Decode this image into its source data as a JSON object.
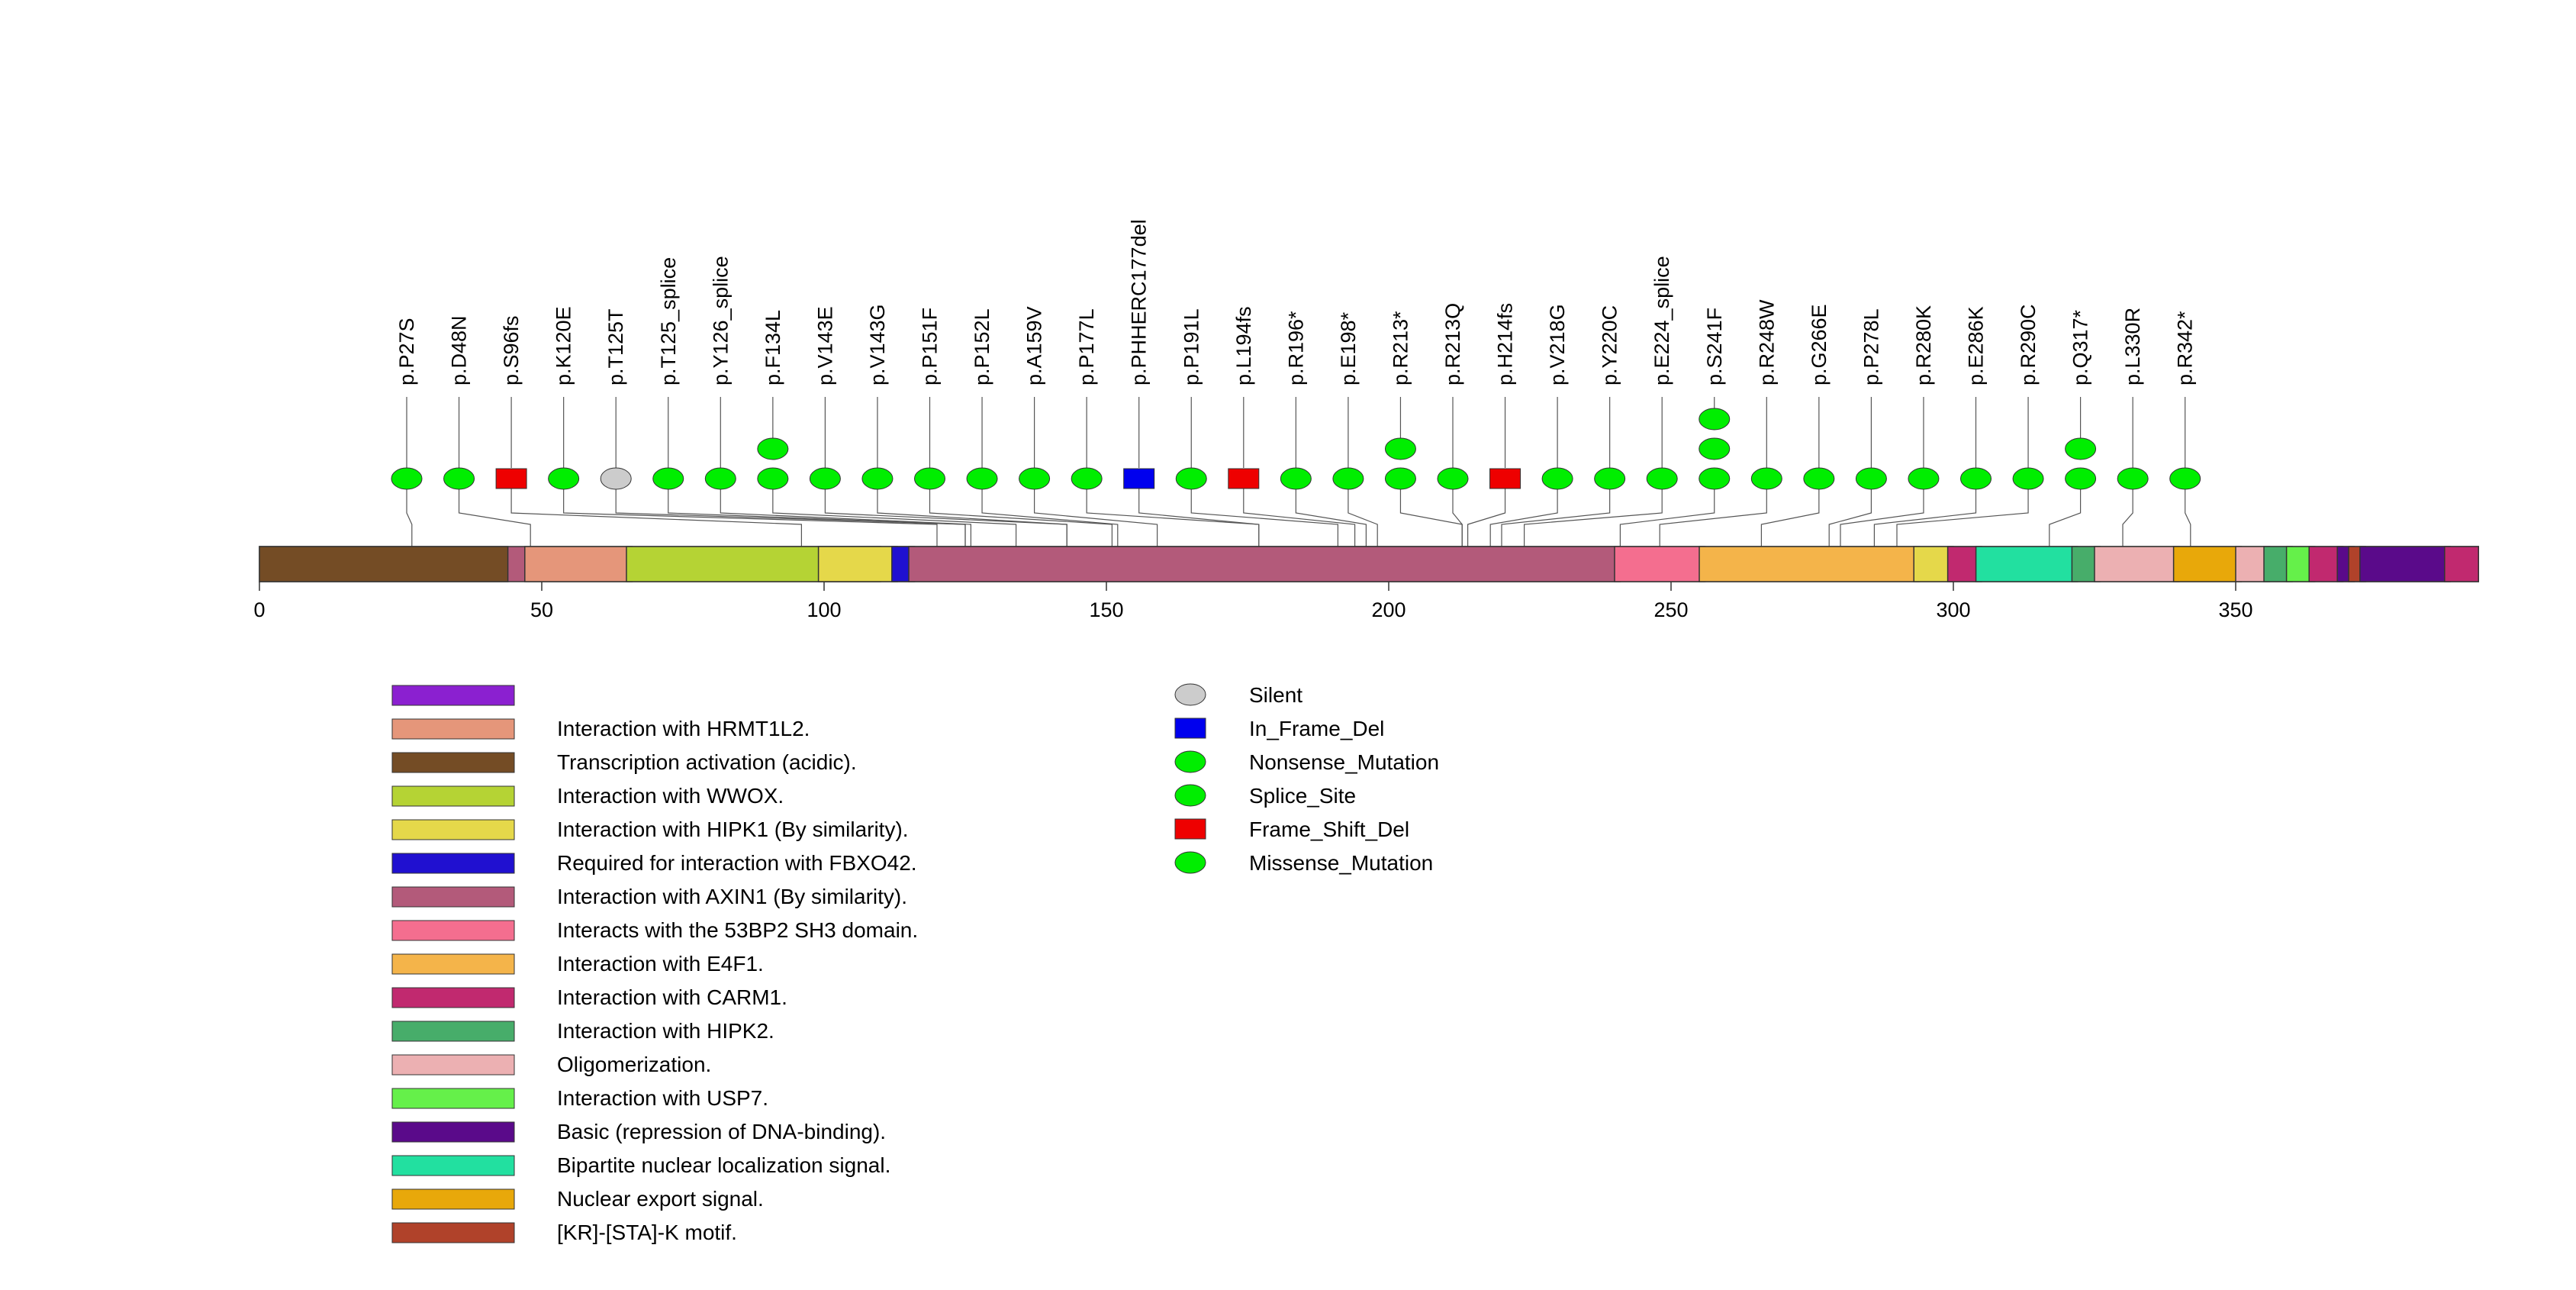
{
  "chart_data": {
    "type": "lollipop",
    "protein_length": 393,
    "x_ticks": [
      0,
      50,
      100,
      150,
      200,
      250,
      300,
      350
    ],
    "domains": [
      {
        "start": 1,
        "end": 44,
        "color": "#744c25",
        "label": "Transcription activation (acidic)."
      },
      {
        "start": 48,
        "end": 66,
        "color": "#e5967a",
        "label": "Interaction with HRMT1L2."
      },
      {
        "start": 66,
        "end": 110,
        "color": "#b5d334",
        "label": "Interaction with WWOX."
      },
      {
        "start": 100,
        "end": 113,
        "color": "#e5d84a",
        "label": "Interaction with HIPK1 (By similarity)."
      },
      {
        "start": 113,
        "end": 116,
        "color": "#2010d0",
        "label": "Required for interaction with FBXO42."
      },
      {
        "start": 116,
        "end": 241,
        "color": "#b35a7a",
        "label": "Interaction with AXIN1 (By similarity)."
      },
      {
        "start": 241,
        "end": 256,
        "color": "#f46e8f",
        "label": "Interacts with the 53BP2 SH3 domain."
      },
      {
        "start": 256,
        "end": 294,
        "color": "#f4b44a",
        "label": "Interaction with E4F1."
      },
      {
        "start": 294,
        "end": 300,
        "color": "#e5d84a",
        "label": "Interaction with HIPK1 (By similarity)."
      },
      {
        "start": 300,
        "end": 305,
        "color": "#c1296f",
        "label": "Interaction with CARM1."
      },
      {
        "start": 305,
        "end": 322,
        "color": "#22e0a0",
        "label": "Bipartite nuclear localization signal."
      },
      {
        "start": 322,
        "end": 326,
        "color": "#47ad6a",
        "label": "Interaction with HIPK2."
      },
      {
        "start": 326,
        "end": 340,
        "color": "#ecb0b2",
        "label": "Oligomerization."
      },
      {
        "start": 340,
        "end": 351,
        "color": "#e8a80a",
        "label": "Nuclear export signal."
      },
      {
        "start": 351,
        "end": 356,
        "color": "#ecb0b2",
        "label": "Oligomerization."
      },
      {
        "start": 356,
        "end": 360,
        "color": "#47ad6a",
        "label": "Interaction with HIPK2."
      },
      {
        "start": 360,
        "end": 364,
        "color": "#65f04a",
        "label": "Interaction with USP7."
      },
      {
        "start": 364,
        "end": 369,
        "color": "#c1296f",
        "label": "Interaction with CARM1."
      },
      {
        "start": 369,
        "end": 371,
        "color": "#5a0a8a",
        "label": "Basic (repression of DNA-binding)."
      },
      {
        "start": 371,
        "end": 373,
        "color": "#b0422a",
        "label": "[KR]-[STA]-K motif."
      },
      {
        "start": 373,
        "end": 388,
        "color": "#5a0a8a",
        "label": "Basic (repression of DNA-binding)."
      },
      {
        "start": 388,
        "end": 393,
        "color": "#c1296f",
        "label": "Interaction with CARM1."
      }
    ],
    "domain_boundaries": [
      27,
      44,
      48,
      66,
      96,
      100,
      113,
      116,
      121,
      125,
      134,
      143,
      151,
      152,
      159,
      177,
      191,
      194,
      196,
      198,
      213,
      214,
      218,
      220,
      224,
      241,
      248,
      256,
      266,
      278,
      280,
      286,
      290,
      294,
      300
    ],
    "mutations": [
      {
        "label": "p.P27S",
        "pos": 27,
        "class": "Missense_Mutation",
        "count": 1
      },
      {
        "label": "p.D48N",
        "pos": 48,
        "class": "Missense_Mutation",
        "count": 1
      },
      {
        "label": "p.S96fs",
        "pos": 96,
        "class": "Frame_Shift_Del",
        "count": 1
      },
      {
        "label": "p.K120E",
        "pos": 120,
        "class": "Missense_Mutation",
        "count": 1
      },
      {
        "label": "p.T125T",
        "pos": 125,
        "class": "Silent",
        "count": 1
      },
      {
        "label": "p.T125_splice",
        "pos": 125,
        "class": "Splice_Site",
        "count": 1
      },
      {
        "label": "p.Y126_splice",
        "pos": 126,
        "class": "Splice_Site",
        "count": 1
      },
      {
        "label": "p.F134L",
        "pos": 134,
        "class": "Missense_Mutation",
        "count": 2
      },
      {
        "label": "p.V143E",
        "pos": 143,
        "class": "Missense_Mutation",
        "count": 1
      },
      {
        "label": "p.V143G",
        "pos": 143,
        "class": "Missense_Mutation",
        "count": 1
      },
      {
        "label": "p.P151F",
        "pos": 151,
        "class": "Missense_Mutation",
        "count": 1
      },
      {
        "label": "p.P152L",
        "pos": 152,
        "class": "Missense_Mutation",
        "count": 1
      },
      {
        "label": "p.A159V",
        "pos": 159,
        "class": "Missense_Mutation",
        "count": 1
      },
      {
        "label": "p.P177L",
        "pos": 177,
        "class": "Missense_Mutation",
        "count": 1
      },
      {
        "label": "p.PHHERC177del",
        "pos": 177,
        "class": "In_Frame_Del",
        "count": 1
      },
      {
        "label": "p.P191L",
        "pos": 191,
        "class": "Missense_Mutation",
        "count": 1
      },
      {
        "label": "p.L194fs",
        "pos": 194,
        "class": "Frame_Shift_Del",
        "count": 1
      },
      {
        "label": "p.R196*",
        "pos": 196,
        "class": "Nonsense_Mutation",
        "count": 1
      },
      {
        "label": "p.E198*",
        "pos": 198,
        "class": "Nonsense_Mutation",
        "count": 1
      },
      {
        "label": "p.R213*",
        "pos": 213,
        "class": "Nonsense_Mutation",
        "count": 2
      },
      {
        "label": "p.R213Q",
        "pos": 213,
        "class": "Missense_Mutation",
        "count": 1
      },
      {
        "label": "p.H214fs",
        "pos": 214,
        "class": "Frame_Shift_Del",
        "count": 1
      },
      {
        "label": "p.V218G",
        "pos": 218,
        "class": "Missense_Mutation",
        "count": 1
      },
      {
        "label": "p.Y220C",
        "pos": 220,
        "class": "Missense_Mutation",
        "count": 1
      },
      {
        "label": "p.E224_splice",
        "pos": 224,
        "class": "Splice_Site",
        "count": 1
      },
      {
        "label": "p.S241F",
        "pos": 241,
        "class": "Missense_Mutation",
        "count": 3
      },
      {
        "label": "p.R248W",
        "pos": 248,
        "class": "Missense_Mutation",
        "count": 1
      },
      {
        "label": "p.G266E",
        "pos": 266,
        "class": "Missense_Mutation",
        "count": 1
      },
      {
        "label": "p.P278L",
        "pos": 278,
        "class": "Missense_Mutation",
        "count": 1
      },
      {
        "label": "p.R280K",
        "pos": 280,
        "class": "Missense_Mutation",
        "count": 1
      },
      {
        "label": "p.E286K",
        "pos": 286,
        "class": "Missense_Mutation",
        "count": 1
      },
      {
        "label": "p.R290C",
        "pos": 290,
        "class": "Missense_Mutation",
        "count": 1
      },
      {
        "label": "p.Q317*",
        "pos": 317,
        "class": "Nonsense_Mutation",
        "count": 2
      },
      {
        "label": "p.L330R",
        "pos": 330,
        "class": "Missense_Mutation",
        "count": 1
      },
      {
        "label": "p.R342*",
        "pos": 342,
        "class": "Nonsense_Mutation",
        "count": 1
      }
    ],
    "domain_legend": [
      {
        "label": "",
        "color": "#8b20d0"
      },
      {
        "label": "Interaction with HRMT1L2.",
        "color": "#e5967a"
      },
      {
        "label": "Transcription activation (acidic).",
        "color": "#744c25"
      },
      {
        "label": "Interaction with WWOX.",
        "color": "#b5d334"
      },
      {
        "label": "Interaction with HIPK1 (By similarity).",
        "color": "#e5d84a"
      },
      {
        "label": "Required for interaction with FBXO42.",
        "color": "#2010d0"
      },
      {
        "label": "Interaction with AXIN1 (By similarity).",
        "color": "#b35a7a"
      },
      {
        "label": "Interacts with the 53BP2 SH3 domain.",
        "color": "#f46e8f"
      },
      {
        "label": "Interaction with E4F1.",
        "color": "#f4b44a"
      },
      {
        "label": "Interaction with CARM1.",
        "color": "#c1296f"
      },
      {
        "label": "Interaction with HIPK2.",
        "color": "#47ad6a"
      },
      {
        "label": "Oligomerization.",
        "color": "#ecb0b2"
      },
      {
        "label": "Interaction with USP7.",
        "color": "#65f04a"
      },
      {
        "label": "Basic (repression of DNA-binding).",
        "color": "#5a0a8a"
      },
      {
        "label": "Bipartite nuclear localization signal.",
        "color": "#22e0a0"
      },
      {
        "label": "Nuclear export signal.",
        "color": "#e8a80a"
      },
      {
        "label": "[KR]-[STA]-K motif.",
        "color": "#b0422a"
      }
    ],
    "mutation_legend": [
      {
        "label": "Silent",
        "shape": "ellipse",
        "color": "#cccccc"
      },
      {
        "label": "In_Frame_Del",
        "shape": "rect",
        "color": "#0000ee"
      },
      {
        "label": "Nonsense_Mutation",
        "shape": "ellipse",
        "color": "#00ee00"
      },
      {
        "label": "Splice_Site",
        "shape": "ellipse",
        "color": "#00ee00"
      },
      {
        "label": "Frame_Shift_Del",
        "shape": "rect",
        "color": "#ee0000"
      },
      {
        "label": "Missense_Mutation",
        "shape": "ellipse",
        "color": "#00ee00"
      }
    ]
  }
}
